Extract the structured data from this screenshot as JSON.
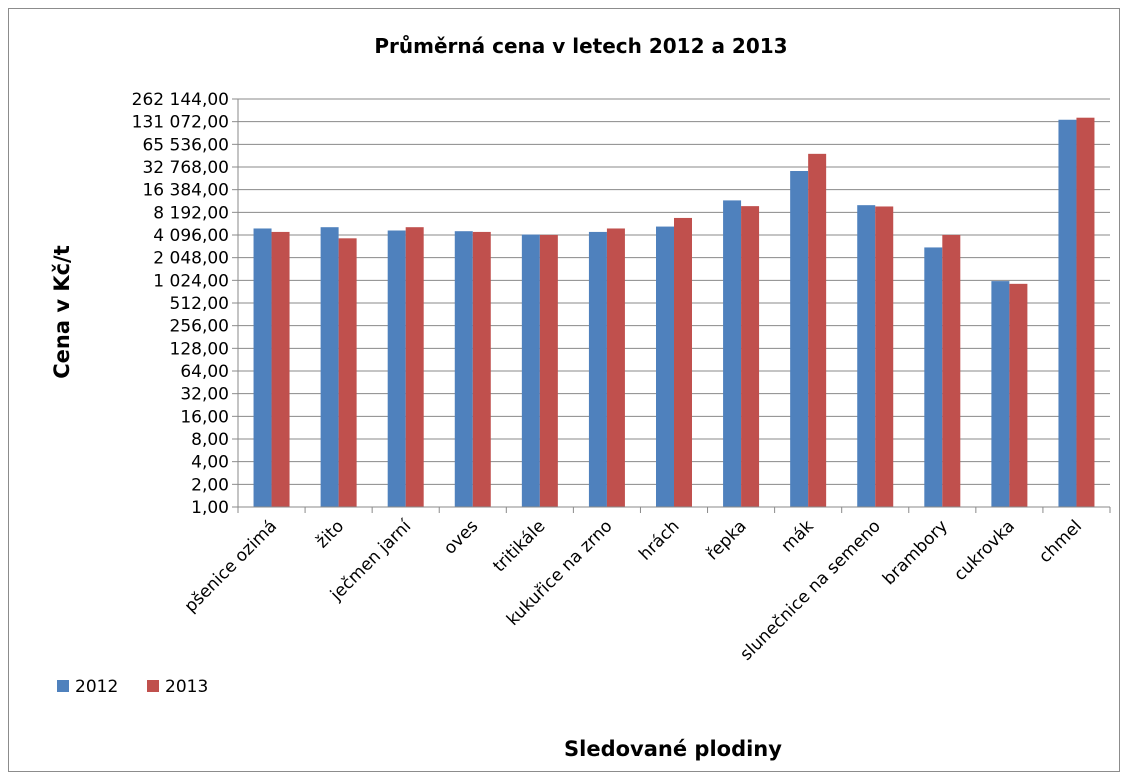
{
  "chart_data": {
    "type": "bar",
    "title": "Průměrná cena v letech 2012 a 2013",
    "xlabel": "Sledované plodiny",
    "ylabel": "Cena v Kč/t",
    "y_scale": "log2",
    "ylim": [
      1,
      262144
    ],
    "y_ticks": [
      {
        "value": 1,
        "label": "1,00"
      },
      {
        "value": 2,
        "label": "2,00"
      },
      {
        "value": 4,
        "label": "4,00"
      },
      {
        "value": 8,
        "label": "8,00"
      },
      {
        "value": 16,
        "label": "16,00"
      },
      {
        "value": 32,
        "label": "32,00"
      },
      {
        "value": 64,
        "label": "64,00"
      },
      {
        "value": 128,
        "label": "128,00"
      },
      {
        "value": 256,
        "label": "256,00"
      },
      {
        "value": 512,
        "label": "512,00"
      },
      {
        "value": 1024,
        "label": "1 024,00"
      },
      {
        "value": 2048,
        "label": "2 048,00"
      },
      {
        "value": 4096,
        "label": "4 096,00"
      },
      {
        "value": 8192,
        "label": "8 192,00"
      },
      {
        "value": 16384,
        "label": "16 384,00"
      },
      {
        "value": 32768,
        "label": "32 768,00"
      },
      {
        "value": 65536,
        "label": "65 536,00"
      },
      {
        "value": 131072,
        "label": "131 072,00"
      },
      {
        "value": 262144,
        "label": "262 144,00"
      }
    ],
    "grid": true,
    "legend_position": "bottom-left",
    "categories": [
      "pšenice ozimá",
      "žito",
      "ječmen jarní",
      "oves",
      "tritikále",
      "kukuřice na zrno",
      "hrách",
      "řepka",
      "mák",
      "slunečnice na semeno",
      "brambory",
      "cukrovka",
      "chmel"
    ],
    "series": [
      {
        "name": "2012",
        "color": "#4f81bd",
        "values": [
          5000,
          5200,
          4700,
          4600,
          4150,
          4500,
          5300,
          11800,
          29000,
          10200,
          2800,
          1000,
          139000
        ]
      },
      {
        "name": "2013",
        "color": "#c0504d",
        "values": [
          4500,
          3700,
          5200,
          4500,
          4100,
          5000,
          6900,
          9900,
          49000,
          9800,
          4100,
          920,
          148000
        ]
      }
    ]
  }
}
